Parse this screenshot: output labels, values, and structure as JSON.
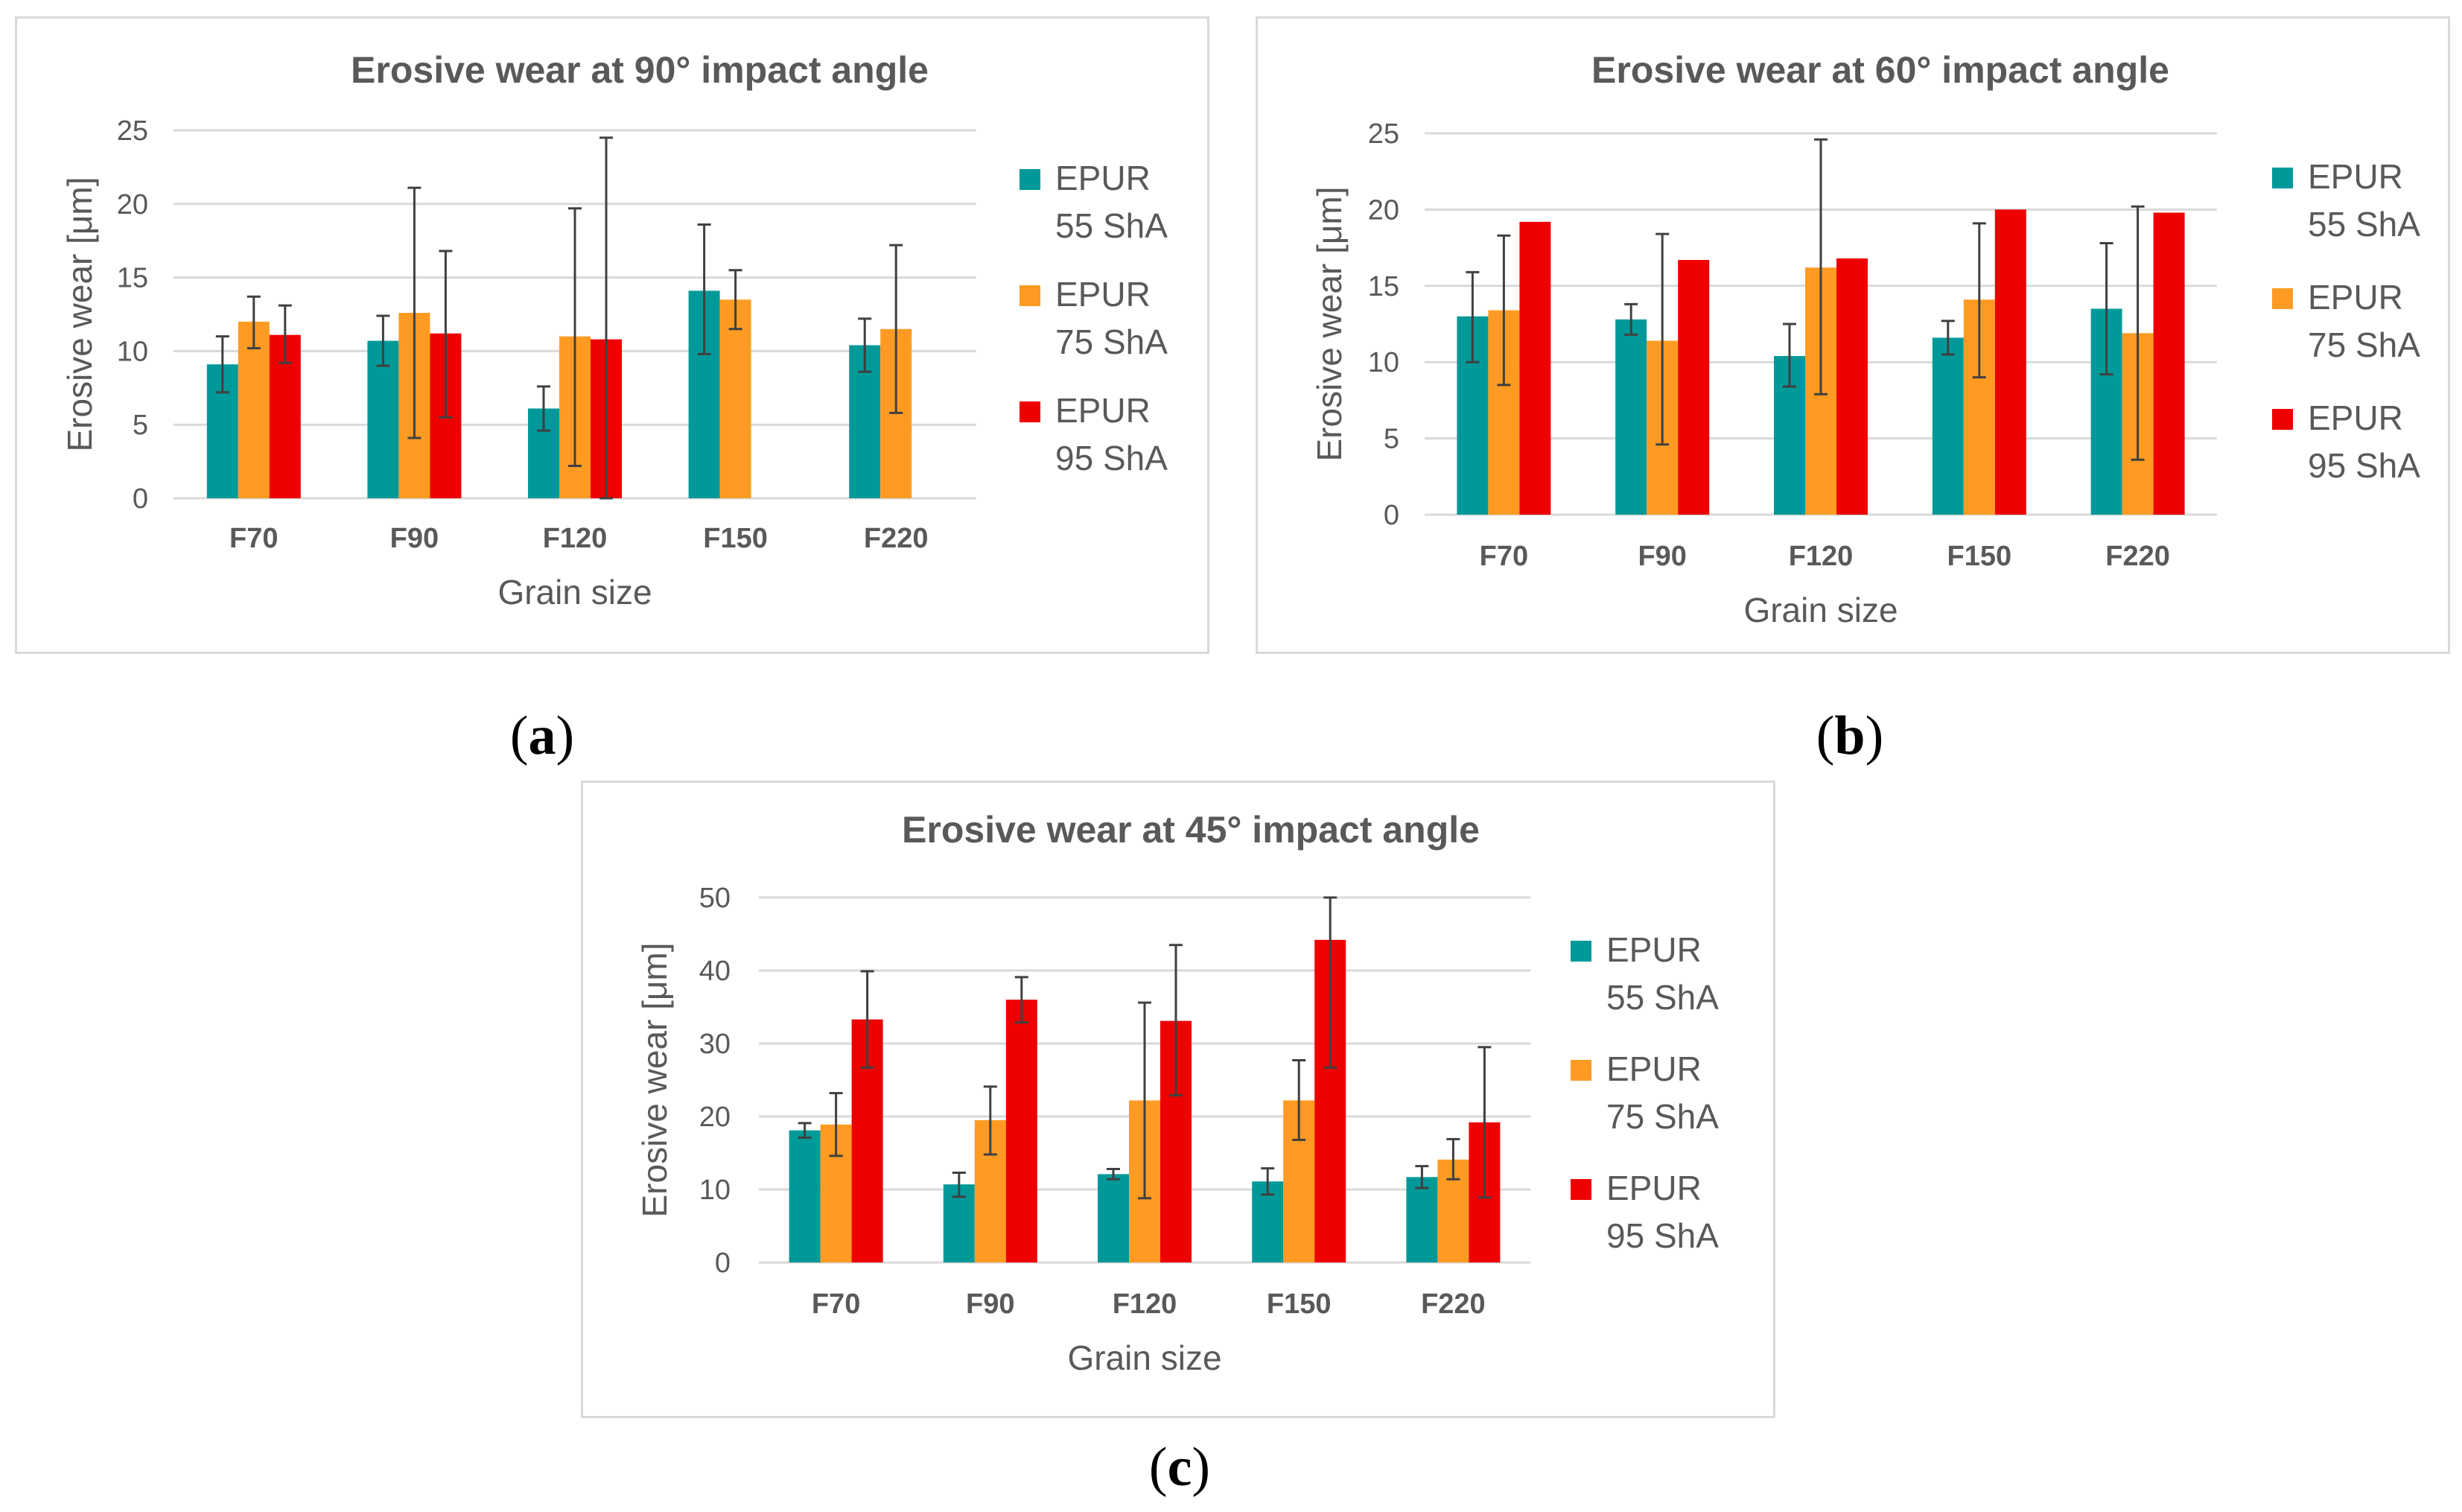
{
  "figure": {
    "captions": [
      {
        "open": "(",
        "letter": "a",
        "close": ")"
      },
      {
        "open": "(",
        "letter": "b",
        "close": ")"
      },
      {
        "open": "(",
        "letter": "c",
        "close": ")"
      }
    ]
  },
  "colors": {
    "epur55": "#009999",
    "epur75": "#FF9B23",
    "epur95": "#EE0000",
    "grid": "#D9D9D9",
    "text": "#595959",
    "errorbar": "#404040"
  },
  "chart_data": [
    {
      "type": "bar",
      "title": "Erosive wear at 90° impact angle",
      "xlabel": "Grain size",
      "ylabel": "Erosive wear [μm]",
      "ylim": [
        0,
        25
      ],
      "yticks": [
        0,
        5,
        10,
        15,
        20,
        25
      ],
      "grid": true,
      "legend_position": "right",
      "categories": [
        "F70",
        "F90",
        "F120",
        "F150",
        "F220"
      ],
      "series": [
        {
          "name": "EPUR 55 ShA",
          "label_line1": "EPUR",
          "label_line2": "55 ShA",
          "values": [
            9.1,
            10.7,
            6.1,
            14.1,
            10.4
          ],
          "errors": [
            [
              7.2,
              11.0
            ],
            [
              9.0,
              12.4
            ],
            [
              4.6,
              7.6
            ],
            [
              9.8,
              18.6
            ],
            [
              8.6,
              12.2
            ]
          ]
        },
        {
          "name": "EPUR 75 ShA",
          "label_line1": "EPUR",
          "label_line2": "75 ShA",
          "values": [
            12.0,
            12.6,
            11.0,
            13.5,
            11.5
          ],
          "errors": [
            [
              10.2,
              13.7
            ],
            [
              4.1,
              21.1
            ],
            [
              2.2,
              19.7
            ],
            [
              11.5,
              15.5
            ],
            [
              5.8,
              17.2
            ]
          ]
        },
        {
          "name": "EPUR 95 ShA",
          "label_line1": "EPUR",
          "label_line2": "95 ShA",
          "values": [
            11.1,
            11.2,
            10.8,
            null,
            null
          ],
          "errors": [
            [
              9.2,
              13.1
            ],
            [
              5.5,
              16.8
            ],
            [
              0,
              24.5
            ],
            null,
            null
          ]
        }
      ]
    },
    {
      "type": "bar",
      "title": "Erosive wear at 60° impact angle",
      "xlabel": "Grain size",
      "ylabel": "Erosive wear [μm]",
      "ylim": [
        0,
        25
      ],
      "yticks": [
        0,
        5,
        10,
        15,
        20,
        25
      ],
      "grid": true,
      "legend_position": "right",
      "categories": [
        "F70",
        "F90",
        "F120",
        "F150",
        "F220"
      ],
      "series": [
        {
          "name": "EPUR 55 ShA",
          "label_line1": "EPUR",
          "label_line2": "55 ShA",
          "values": [
            13.0,
            12.8,
            10.4,
            11.6,
            13.5
          ],
          "errors": [
            [
              10.0,
              15.9
            ],
            [
              11.8,
              13.8
            ],
            [
              8.4,
              12.5
            ],
            [
              10.5,
              12.7
            ],
            [
              9.2,
              17.8
            ]
          ]
        },
        {
          "name": "EPUR 75 ShA",
          "label_line1": "EPUR",
          "label_line2": "75 ShA",
          "values": [
            13.4,
            11.4,
            16.2,
            14.1,
            11.9
          ],
          "errors": [
            [
              8.5,
              18.3
            ],
            [
              4.6,
              18.4
            ],
            [
              7.9,
              24.6
            ],
            [
              9.0,
              19.1
            ],
            [
              3.6,
              20.2
            ]
          ]
        },
        {
          "name": "EPUR 95 ShA",
          "label_line1": "EPUR",
          "label_line2": "95 ShA",
          "values": [
            19.2,
            16.7,
            16.8,
            20.0,
            19.8
          ],
          "errors": [
            null,
            null,
            null,
            null,
            null
          ]
        }
      ]
    },
    {
      "type": "bar",
      "title": "Erosive wear at 45° impact angle",
      "xlabel": "Grain size",
      "ylabel": "Erosive wear [μm]",
      "ylim": [
        0,
        50
      ],
      "yticks": [
        0,
        10,
        20,
        30,
        40,
        50
      ],
      "grid": true,
      "legend_position": "right",
      "categories": [
        "F70",
        "F90",
        "F120",
        "F150",
        "F220"
      ],
      "series": [
        {
          "name": "EPUR 55 ShA",
          "label_line1": "EPUR",
          "label_line2": "55 ShA",
          "values": [
            18.1,
            10.7,
            12.1,
            11.1,
            11.7
          ],
          "errors": [
            [
              17.1,
              19.1
            ],
            [
              9.0,
              12.3
            ],
            [
              11.4,
              12.8
            ],
            [
              9.3,
              12.9
            ],
            [
              10.2,
              13.2
            ]
          ]
        },
        {
          "name": "EPUR 75 ShA",
          "label_line1": "EPUR",
          "label_line2": "75 ShA",
          "values": [
            18.9,
            19.5,
            22.2,
            22.2,
            14.1
          ],
          "errors": [
            [
              14.6,
              23.2
            ],
            [
              14.8,
              24.1
            ],
            [
              8.8,
              35.6
            ],
            [
              16.8,
              27.7
            ],
            [
              11.4,
              16.9
            ]
          ]
        },
        {
          "name": "EPUR 95 ShA",
          "label_line1": "EPUR",
          "label_line2": "95 ShA",
          "values": [
            33.3,
            36.0,
            33.1,
            44.2,
            19.2
          ],
          "errors": [
            [
              26.7,
              39.9
            ],
            [
              32.9,
              39.1
            ],
            [
              22.9,
              43.5
            ],
            [
              26.7,
              50.0
            ],
            [
              8.9,
              29.5
            ]
          ]
        }
      ]
    }
  ]
}
